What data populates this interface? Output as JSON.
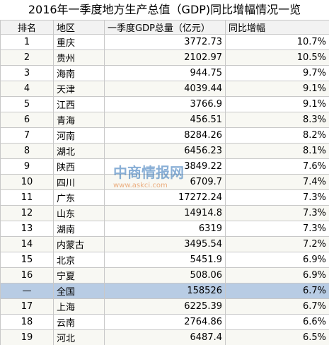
{
  "title": "2016年一季度地方生产总值（GDP)同比增幅情况一览",
  "table": {
    "header": [
      "排名",
      "地区",
      "一季度GDP总量（亿元）",
      "同比增幅"
    ],
    "rows": [
      [
        "1",
        "重庆",
        "3772.73",
        "10.7%"
      ],
      [
        "2",
        "贵州",
        "2102.97",
        "10.5%"
      ],
      [
        "3",
        "海南",
        "944.75",
        "9.7%"
      ],
      [
        "4",
        "天津",
        "4039.44",
        "9.1%"
      ],
      [
        "5",
        "江西",
        "3766.9",
        "9.1%"
      ],
      [
        "6",
        "青海",
        "456.51",
        "8.3%"
      ],
      [
        "7",
        "河南",
        "8284.26",
        "8.2%"
      ],
      [
        "8",
        "湖北",
        "6456.23",
        "8.1%"
      ],
      [
        "9",
        "陕西",
        "3849.22",
        "7.6%"
      ],
      [
        "10",
        "四川",
        "6709.7",
        "7.4%"
      ],
      [
        "11",
        "广东",
        "17272.24",
        "7.3%"
      ],
      [
        "12",
        "山东",
        "14914.8",
        "7.3%"
      ],
      [
        "13",
        "湖南",
        "6319",
        "7.3%"
      ],
      [
        "14",
        "内蒙古",
        "3495.54",
        "7.2%"
      ],
      [
        "15",
        "北京",
        "5451.9",
        "6.9%"
      ],
      [
        "16",
        "宁夏",
        "508.06",
        "6.9%"
      ],
      [
        "—",
        "全国",
        "158526",
        "6.7%"
      ],
      [
        "17",
        "上海",
        "6225.39",
        "6.7%"
      ],
      [
        "18",
        "云南",
        "2764.86",
        "6.6%"
      ],
      [
        "19",
        "河北",
        "6487.4",
        "6.5%"
      ]
    ]
  },
  "watermark": {
    "name": "中商情报网",
    "url": "www.askci.com"
  }
}
